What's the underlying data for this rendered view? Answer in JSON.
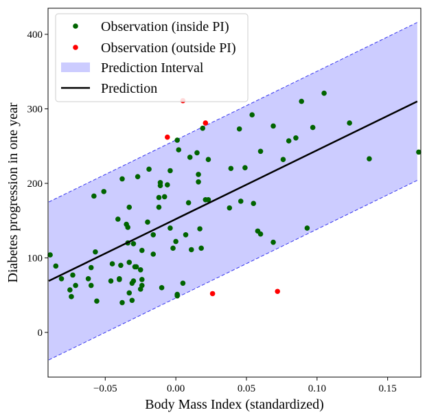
{
  "chart_data": {
    "type": "scatter",
    "title": "",
    "xlabel": "Body Mass Index (standardized)",
    "ylabel": "Diabetes progression in one year",
    "xlim": [
      -0.0905,
      0.1735
    ],
    "ylim": [
      -60,
      435
    ],
    "xticks": [
      -0.05,
      0.0,
      0.05,
      0.1,
      0.15
    ],
    "xtick_labels": [
      "−0.05",
      "0.00",
      "0.05",
      "0.10",
      "0.15"
    ],
    "yticks": [
      0,
      100,
      200,
      300,
      400
    ],
    "ytick_labels": [
      "0",
      "100",
      "200",
      "300",
      "400"
    ],
    "grid": false,
    "legend": {
      "placement": "top-left",
      "entries": [
        {
          "label": "Observation (inside PI)",
          "kind": "marker",
          "color": "#006400"
        },
        {
          "label": "Observation (outside PI)",
          "kind": "marker",
          "color": "#ff0000"
        },
        {
          "label": "Prediction Interval",
          "kind": "patch",
          "color": "#ccccff"
        },
        {
          "label": "Prediction",
          "kind": "line",
          "color": "#000000"
        }
      ]
    },
    "prediction": {
      "x": [
        -0.09,
        0.171
      ],
      "y": [
        69,
        310
      ],
      "color": "#000000"
    },
    "interval": {
      "x": [
        -0.09,
        0.171
      ],
      "lower": [
        -37,
        204
      ],
      "upper": [
        175,
        416
      ],
      "fill": "#ccccff",
      "edge": "#3333ee"
    },
    "series": [
      {
        "name": "Observation (inside PI)",
        "color": "#006400",
        "points": [
          [
            -0.089,
            104
          ],
          [
            -0.085,
            89
          ],
          [
            -0.081,
            72
          ],
          [
            -0.075,
            57
          ],
          [
            -0.074,
            48
          ],
          [
            -0.073,
            77
          ],
          [
            -0.071,
            63
          ],
          [
            -0.062,
            72
          ],
          [
            -0.06,
            87
          ],
          [
            -0.06,
            63
          ],
          [
            -0.058,
            183
          ],
          [
            -0.057,
            108
          ],
          [
            -0.056,
            42
          ],
          [
            -0.051,
            189
          ],
          [
            -0.046,
            69
          ],
          [
            -0.045,
            92
          ],
          [
            -0.041,
            152
          ],
          [
            -0.04,
            71
          ],
          [
            -0.04,
            72
          ],
          [
            -0.039,
            90
          ],
          [
            -0.038,
            40
          ],
          [
            -0.038,
            206
          ],
          [
            -0.035,
            145
          ],
          [
            -0.034,
            141
          ],
          [
            -0.034,
            120
          ],
          [
            -0.033,
            168
          ],
          [
            -0.033,
            53
          ],
          [
            -0.033,
            94
          ],
          [
            -0.031,
            66
          ],
          [
            -0.031,
            43
          ],
          [
            -0.03,
            119
          ],
          [
            -0.03,
            69
          ],
          [
            -0.029,
            88
          ],
          [
            -0.028,
            88
          ],
          [
            -0.027,
            209
          ],
          [
            -0.025,
            84
          ],
          [
            -0.025,
            58
          ],
          [
            -0.024,
            63
          ],
          [
            -0.024,
            71
          ],
          [
            -0.024,
            110
          ],
          [
            -0.02,
            148
          ],
          [
            -0.019,
            219
          ],
          [
            -0.016,
            131
          ],
          [
            -0.016,
            105
          ],
          [
            -0.012,
            181
          ],
          [
            -0.012,
            168
          ],
          [
            -0.011,
            201
          ],
          [
            -0.011,
            197
          ],
          [
            -0.01,
            60
          ],
          [
            -0.008,
            182
          ],
          [
            -0.006,
            198
          ],
          [
            -0.004,
            140
          ],
          [
            -0.004,
            217
          ],
          [
            -0.002,
            113
          ],
          [
            0.0,
            122
          ],
          [
            0.001,
            258
          ],
          [
            0.001,
            49
          ],
          [
            0.001,
            51
          ],
          [
            0.002,
            245
          ],
          [
            0.005,
            66
          ],
          [
            0.007,
            131
          ],
          [
            0.009,
            174
          ],
          [
            0.01,
            235
          ],
          [
            0.011,
            111
          ],
          [
            0.015,
            241
          ],
          [
            0.016,
            202
          ],
          [
            0.016,
            212
          ],
          [
            0.017,
            139
          ],
          [
            0.018,
            113
          ],
          [
            0.019,
            274
          ],
          [
            0.021,
            178
          ],
          [
            0.023,
            178
          ],
          [
            0.023,
            232
          ],
          [
            0.038,
            167
          ],
          [
            0.039,
            220
          ],
          [
            0.045,
            273
          ],
          [
            0.046,
            176
          ],
          [
            0.049,
            221
          ],
          [
            0.054,
            292
          ],
          [
            0.055,
            173
          ],
          [
            0.058,
            136
          ],
          [
            0.06,
            243
          ],
          [
            0.06,
            132
          ],
          [
            0.069,
            121
          ],
          [
            0.069,
            277
          ],
          [
            0.076,
            232
          ],
          [
            0.08,
            257
          ],
          [
            0.085,
            261
          ],
          [
            0.089,
            310
          ],
          [
            0.093,
            140
          ],
          [
            0.097,
            275
          ],
          [
            0.105,
            321
          ],
          [
            0.123,
            281
          ],
          [
            0.137,
            233
          ],
          [
            0.172,
            242
          ]
        ]
      },
      {
        "name": "Observation (outside PI)",
        "color": "#ff0000",
        "points": [
          [
            -0.006,
            262
          ],
          [
            0.005,
            311
          ],
          [
            0.021,
            281
          ],
          [
            0.026,
            52
          ],
          [
            0.072,
            55
          ]
        ]
      }
    ]
  }
}
